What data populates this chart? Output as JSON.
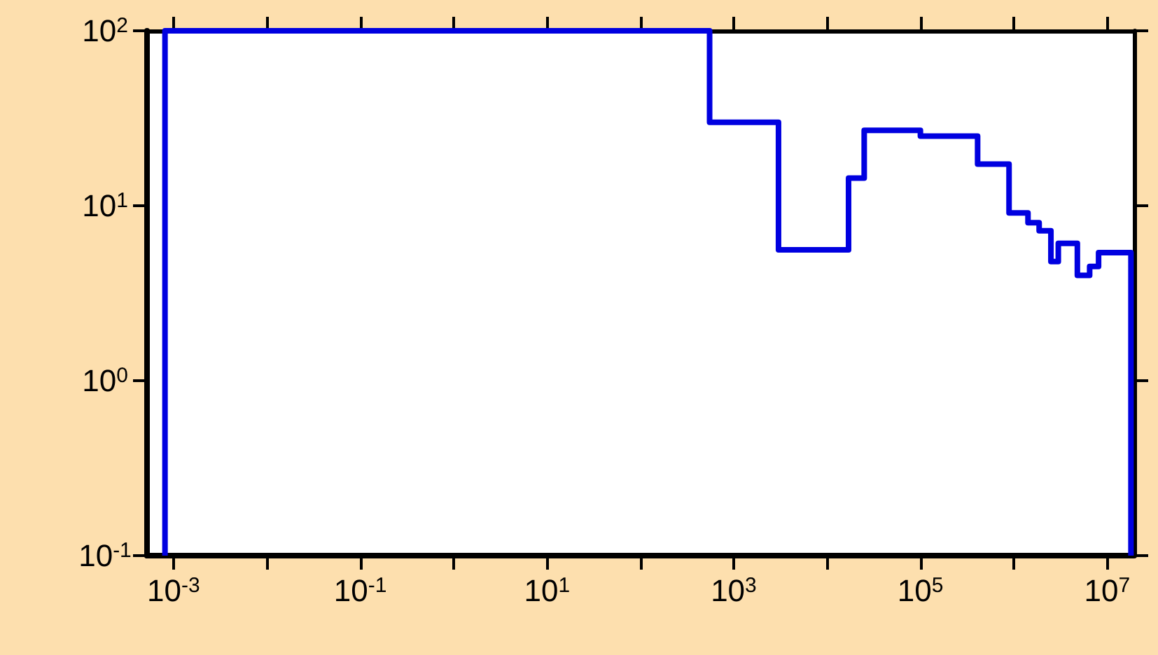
{
  "chart_data": {
    "type": "step",
    "log": "xy",
    "line_style": "solid",
    "color": "#0000e0",
    "x": [
      0.00081,
      0.00081,
      552,
      3020,
      17000,
      25000,
      100000,
      410000,
      890000,
      1420000,
      1870000,
      2500000,
      3000000,
      4800000,
      6500000,
      8100000,
      18000000
    ],
    "values": [
      0.1,
      100,
      30,
      5.6,
      14.4,
      27,
      25,
      17.3,
      9.1,
      8.0,
      7.2,
      4.8,
      6.1,
      4.0,
      4.5,
      5.4,
      0.1
    ],
    "xlim": [
      0.00052,
      19500000
    ],
    "ylim": [
      0.1,
      100
    ],
    "xticks": [
      {
        "value": 0.001,
        "label": "10$^{-3}$"
      },
      {
        "value": 0.01,
        "label": null
      },
      {
        "value": 0.1,
        "label": "10$^{-1}$"
      },
      {
        "value": 1,
        "label": null
      },
      {
        "value": 10,
        "label": "10$^{1}$"
      },
      {
        "value": 100,
        "label": null
      },
      {
        "value": 1000,
        "label": "10$^{3}$"
      },
      {
        "value": 10000,
        "label": null
      },
      {
        "value": 100000,
        "label": "10$^{5}$"
      },
      {
        "value": 1000000,
        "label": null
      },
      {
        "value": 10000000,
        "label": "10$^{7}$"
      }
    ],
    "yticks": [
      {
        "value": 0.1,
        "label": "10$^{-1}$"
      },
      {
        "value": 1,
        "label": "10$^{0}$"
      },
      {
        "value": 10,
        "label": "10$^{1}$"
      },
      {
        "value": 100,
        "label": "10$^{2}$"
      }
    ]
  }
}
